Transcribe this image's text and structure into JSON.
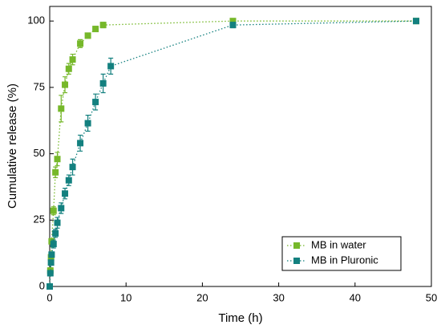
{
  "chart_data": {
    "type": "scatter",
    "xlabel": "Time (h)",
    "ylabel": "Cumulative release (%)",
    "xlim": [
      0,
      50
    ],
    "xticks": [
      0,
      10,
      20,
      30,
      40,
      50
    ],
    "ylim": [
      0,
      105.5
    ],
    "yticks": [
      0,
      25,
      50,
      75,
      100
    ],
    "legend": "lower right",
    "series": [
      {
        "name": "MB in water",
        "color": "#76b82a",
        "x": [
          0,
          0.083,
          0.17,
          0.25,
          0.5,
          0.75,
          1,
          1.5,
          2,
          2.5,
          3,
          4,
          5,
          6,
          7,
          24,
          48
        ],
        "values": [
          0,
          6,
          11,
          17,
          28.5,
          43,
          48,
          67,
          76,
          82,
          85.5,
          91.5,
          94.5,
          97,
          98.5,
          100,
          100
        ],
        "errors": [
          0,
          1,
          1,
          1,
          1.5,
          2,
          2.5,
          5,
          3,
          2,
          2,
          1.5,
          1,
          1,
          1,
          0.5,
          0.5
        ]
      },
      {
        "name": "MB in Pluronic",
        "color": "#13807f",
        "x": [
          0,
          0.083,
          0.17,
          0.25,
          0.5,
          0.75,
          1,
          1.5,
          2,
          2.5,
          3,
          4,
          5,
          6,
          7,
          8,
          24,
          48
        ],
        "values": [
          0,
          5,
          9,
          12,
          16,
          20,
          24,
          29.5,
          35,
          40,
          45,
          54,
          61.5,
          69.5,
          76.5,
          83,
          98.5,
          100
        ],
        "errors": [
          0,
          1,
          1,
          1,
          1.5,
          1.5,
          2,
          2,
          2,
          2,
          3,
          3,
          3,
          3,
          3.5,
          3,
          1,
          0.5
        ]
      }
    ]
  }
}
